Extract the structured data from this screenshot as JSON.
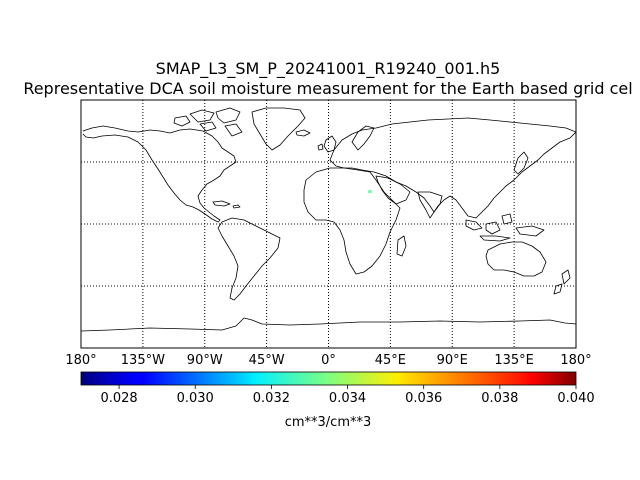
{
  "chart_data": {
    "type": "map",
    "title": "SMAP_L3_SM_P_20241001_R19240_001.h5",
    "subtitle": "Representative DCA soil moisture measurement for the Earth based grid cel",
    "projection": "equirectangular",
    "lon_range": [
      -180,
      180
    ],
    "lat_range": [
      -90,
      90
    ],
    "meridians": [
      -180,
      -135,
      -90,
      -45,
      0,
      45,
      90,
      135,
      180
    ],
    "parallels": [
      -45,
      0,
      45
    ],
    "lon_tick_labels": [
      "180°",
      "135°W",
      "90°W",
      "45°W",
      "0°",
      "45°E",
      "90°E",
      "135°E",
      "180°"
    ],
    "grid": "dotted",
    "data_points": [
      {
        "lon": 30.0,
        "lat": 23.5,
        "value": 0.0331,
        "label": "single valid retrieval (cyan)"
      }
    ],
    "colorbar": {
      "colormap": "jet",
      "vmin": 0.027,
      "vmax": 0.04,
      "ticks": [
        0.028,
        0.03,
        0.032,
        0.034,
        0.036,
        0.038,
        0.04
      ],
      "tick_labels": [
        "0.028",
        "0.030",
        "0.032",
        "0.034",
        "0.036",
        "0.038",
        "0.040"
      ],
      "label": "cm**3/cm**3",
      "orientation": "horizontal"
    }
  },
  "colors": {
    "coastline": "#000000",
    "gridline": "#000000",
    "background": "#ffffff"
  }
}
